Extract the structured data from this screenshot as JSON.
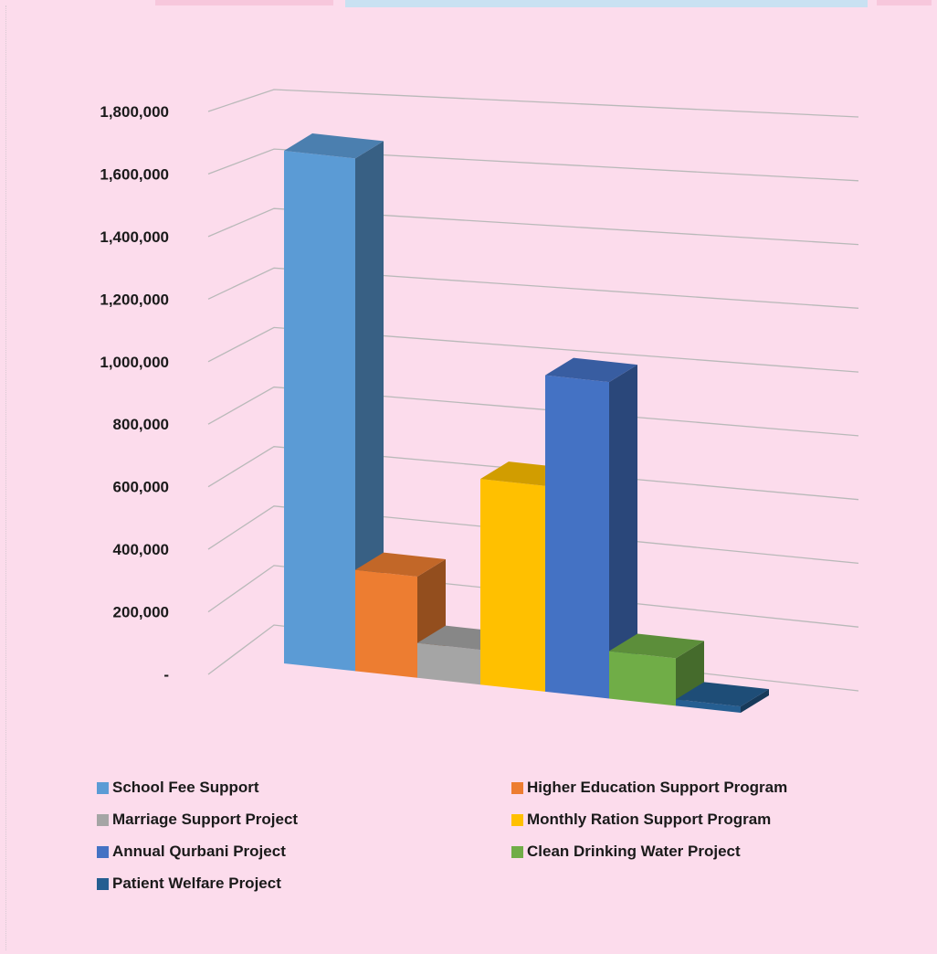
{
  "chart_data": {
    "type": "bar",
    "categories": [
      "School Fee Support",
      "Higher Education Support Program",
      "Marriage Support Project",
      "Monthly Ration Support Program",
      "Annual Qurbani Project",
      "Clean Drinking Water Project",
      "Patient Welfare Project"
    ],
    "values": [
      1620000,
      320000,
      110000,
      650000,
      1000000,
      150000,
      20000
    ],
    "colors": [
      "#5b9bd5",
      "#ed7d31",
      "#a5a5a5",
      "#ffc000",
      "#4472c4",
      "#70ad47",
      "#255e91"
    ],
    "y_tick_labels": [
      "-",
      "200,000",
      "400,000",
      "600,000",
      "800,000",
      "1,000,000",
      "1,200,000",
      "1,400,000",
      "1,600,000",
      "1,800,000"
    ],
    "ylim": [
      0,
      1800000
    ],
    "grid": true,
    "legend_position": "bottom",
    "title": "",
    "xlabel": "",
    "ylabel": ""
  }
}
